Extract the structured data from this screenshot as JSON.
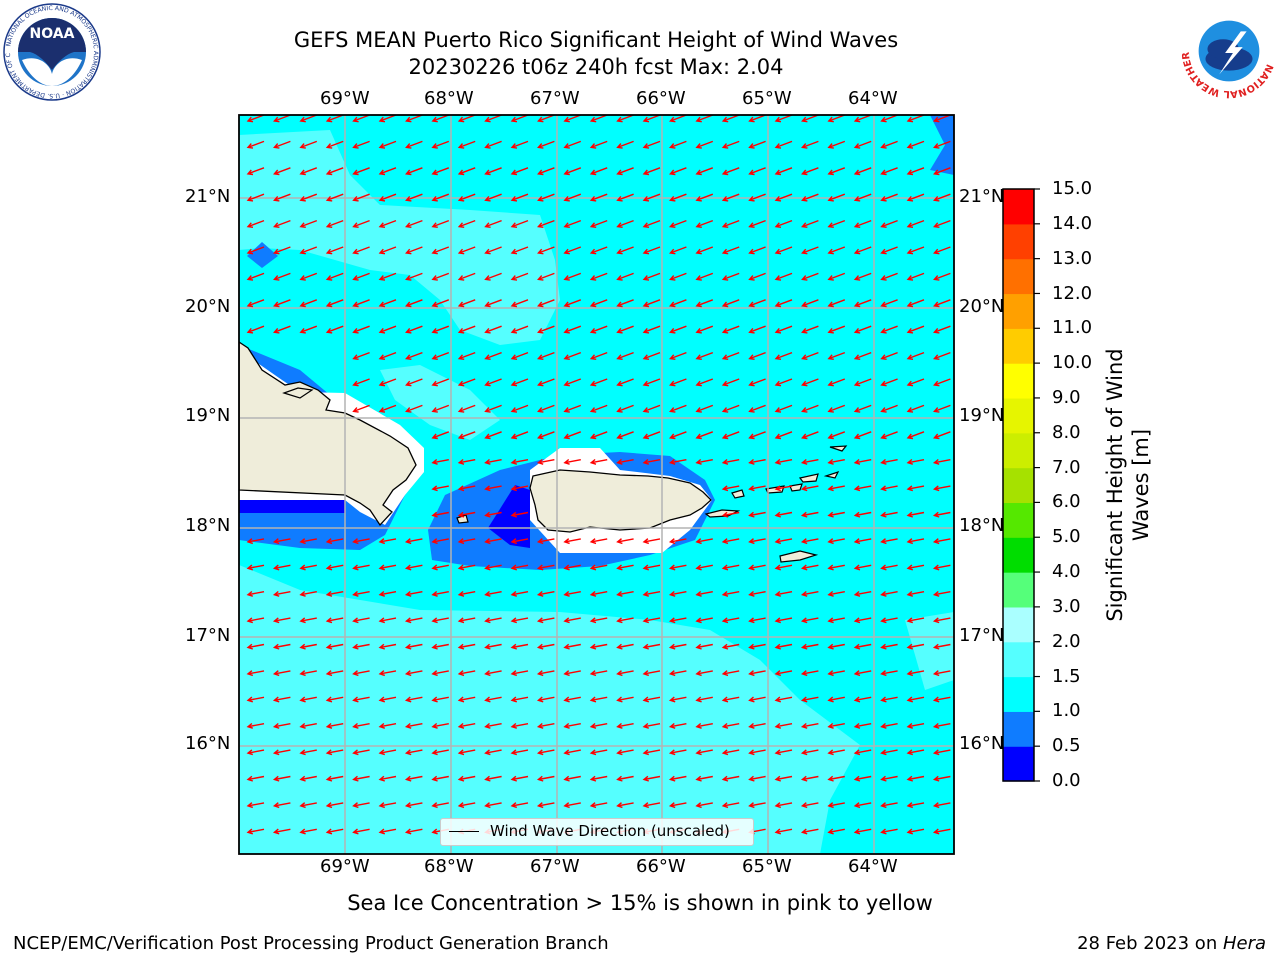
{
  "title": {
    "line1": "GEFS MEAN Puerto Rico Significant Height of Wind Waves",
    "line2": "20230226 t06z 240h fcst   Max: 2.04"
  },
  "logos": {
    "noaa": {
      "wordmark": "NOAA",
      "ring_text": "NATIONAL OCEANIC AND ATMOSPHERIC ADMINISTRATION · U.S. DEPARTMENT OF COMMERCE"
    },
    "nws": {
      "ring_text": "NATIONAL WEATHER SERVICE"
    }
  },
  "map": {
    "lon_labels": [
      "69°W",
      "68°W",
      "67°W",
      "66°W",
      "65°W",
      "64°W"
    ],
    "lat_labels": [
      "21°N",
      "20°N",
      "19°N",
      "18°N",
      "17°N",
      "16°N"
    ],
    "legend_label": "Wind Wave Direction (unscaled)",
    "colors": {
      "ocean_main": "#00ffff",
      "ocean_light": "#55ffff",
      "ocean_mid": "#0f7cff",
      "ocean_dark": "#0000ff",
      "land": "#efedda",
      "arrow": "#ff0000",
      "grid": "#b4b4b4"
    }
  },
  "colorbar": {
    "label": "Significant Height of Wind Waves [m]",
    "ticks": [
      "0.0",
      "0.5",
      "1.0",
      "1.5",
      "2.0",
      "3.0",
      "4.0",
      "5.0",
      "6.0",
      "7.0",
      "8.0",
      "9.0",
      "10.0",
      "11.0",
      "12.0",
      "13.0",
      "14.0",
      "15.0"
    ],
    "colors": [
      "#0000ff",
      "#0f7cff",
      "#00ffff",
      "#55ffff",
      "#aaffff",
      "#55ff7a",
      "#00dd00",
      "#55e800",
      "#a6e100",
      "#ccee00",
      "#e6f500",
      "#ffff00",
      "#ffcc00",
      "#ffa000",
      "#ff7000",
      "#ff4000",
      "#ff0000"
    ]
  },
  "sea_ice_note": "Sea Ice Concentration > 15% is shown in pink to yellow",
  "footer": {
    "left": "NCEP/EMC/Verification Post Processing Product Generation Branch",
    "right_prefix": "28 Feb 2023 on ",
    "right_host": "Hera"
  }
}
